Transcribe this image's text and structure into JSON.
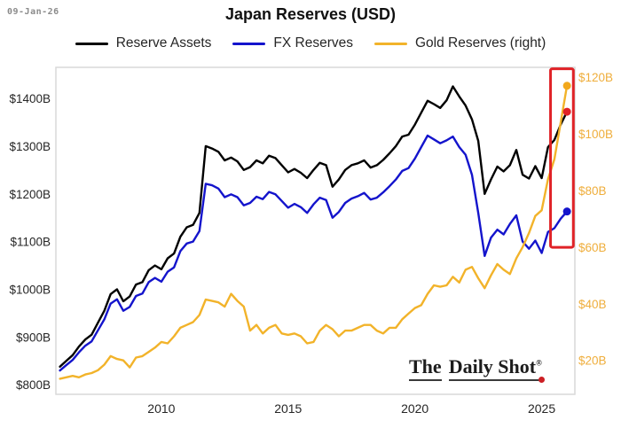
{
  "header": {
    "date": "09-Jan-26",
    "title": "Japan Reserves (USD)"
  },
  "legend": {
    "items": [
      {
        "label": "Reserve Assets",
        "color": "#000000"
      },
      {
        "label": "FX Reserves",
        "color": "#1414cc"
      },
      {
        "label": "Gold Reserves (right)",
        "color": "#f2b32a"
      }
    ]
  },
  "watermark": {
    "part1": "The",
    "part2": "Daily Shot",
    "reg": "®"
  },
  "colors": {
    "accent_red": "#e02227",
    "frame": "#d9d9d9",
    "text_dark": "#262626",
    "text_gray": "#8b8b8b",
    "right_axis_label": "#efae3c"
  },
  "chart_data": {
    "type": "line",
    "title": "Japan Reserves (USD)",
    "grid": false,
    "legend_position": "top",
    "x_range": [
      2005.84,
      2026.31
    ],
    "x_ticks": [
      2010,
      2015,
      2020,
      2025
    ],
    "x_tick_labels": [
      "2010",
      "2015",
      "2020",
      "2025"
    ],
    "left_axis": {
      "range": [
        780,
        1465
      ],
      "ticks": [
        1400,
        1300,
        1200,
        1100,
        1000,
        900,
        800
      ],
      "tick_labels": [
        "$1400B",
        "$1300B",
        "$1200B",
        "$1100B",
        "$1000B",
        "$900B",
        "$800B"
      ],
      "color": "#262626"
    },
    "right_axis": {
      "range": [
        8,
        123.5
      ],
      "ticks": [
        120,
        100,
        80,
        60,
        40,
        20
      ],
      "tick_labels": [
        "$120B",
        "$100B",
        "$80B",
        "$60B",
        "$40B",
        "$20B"
      ],
      "color": "#efae3c"
    },
    "highlight_box": {
      "x": [
        2025.35,
        2026.25
      ],
      "left_values": [
        1088,
        1462
      ],
      "color": "#e02227"
    },
    "x": [
      2006,
      2006.25,
      2006.5,
      2006.75,
      2007,
      2007.25,
      2007.5,
      2007.75,
      2008,
      2008.25,
      2008.5,
      2008.75,
      2009,
      2009.25,
      2009.5,
      2009.75,
      2010,
      2010.25,
      2010.5,
      2010.75,
      2011,
      2011.25,
      2011.5,
      2011.75,
      2012,
      2012.25,
      2012.5,
      2012.75,
      2013,
      2013.25,
      2013.5,
      2013.75,
      2014,
      2014.25,
      2014.5,
      2014.75,
      2015,
      2015.25,
      2015.5,
      2015.75,
      2016,
      2016.25,
      2016.5,
      2016.75,
      2017,
      2017.25,
      2017.5,
      2017.75,
      2018,
      2018.25,
      2018.5,
      2018.75,
      2019,
      2019.25,
      2019.5,
      2019.75,
      2020,
      2020.25,
      2020.5,
      2020.75,
      2021,
      2021.25,
      2021.5,
      2021.75,
      2022,
      2022.25,
      2022.5,
      2022.75,
      2023,
      2023.25,
      2023.5,
      2023.75,
      2024,
      2024.25,
      2024.5,
      2024.75,
      2025,
      2025.25,
      2025.5,
      2025.75,
      2026
    ],
    "series": [
      {
        "name": "Reserve Assets",
        "axis": "left",
        "color": "#000000",
        "marker_color": "#e02227",
        "values": [
          838,
          850,
          862,
          880,
          895,
          905,
          930,
          955,
          990,
          1000,
          975,
          985,
          1010,
          1015,
          1040,
          1050,
          1042,
          1065,
          1075,
          1110,
          1130,
          1135,
          1160,
          1300,
          1295,
          1288,
          1270,
          1276,
          1268,
          1250,
          1256,
          1270,
          1264,
          1280,
          1275,
          1260,
          1245,
          1252,
          1244,
          1233,
          1250,
          1265,
          1260,
          1215,
          1230,
          1250,
          1260,
          1264,
          1270,
          1255,
          1260,
          1271,
          1285,
          1300,
          1320,
          1324,
          1345,
          1370,
          1395,
          1388,
          1380,
          1396,
          1425,
          1404,
          1385,
          1356,
          1311,
          1200,
          1230,
          1257,
          1247,
          1260,
          1292,
          1240,
          1232,
          1258,
          1233,
          1298,
          1313,
          1345,
          1372
        ]
      },
      {
        "name": "FX Reserves",
        "axis": "left",
        "color": "#1414cc",
        "marker_color": "#1414cc",
        "values": [
          830,
          841,
          852,
          868,
          882,
          891,
          914,
          937,
          970,
          979,
          955,
          963,
          986,
          991,
          1015,
          1024,
          1016,
          1037,
          1046,
          1080,
          1096,
          1100,
          1122,
          1221,
          1218,
          1211,
          1193,
          1199,
          1193,
          1176,
          1181,
          1194,
          1189,
          1204,
          1199,
          1185,
          1171,
          1179,
          1172,
          1160,
          1178,
          1192,
          1187,
          1150,
          1162,
          1181,
          1190,
          1195,
          1202,
          1188,
          1192,
          1203,
          1216,
          1230,
          1248,
          1254,
          1274,
          1298,
          1322,
          1314,
          1306,
          1312,
          1320,
          1298,
          1282,
          1240,
          1160,
          1070,
          1108,
          1125,
          1115,
          1137,
          1155,
          1100,
          1085,
          1102,
          1076,
          1120,
          1128,
          1148,
          1163
        ]
      },
      {
        "name": "Gold Reserves (right)",
        "axis": "right",
        "color": "#f2b32a",
        "marker_color": "#f2a81c",
        "values": [
          13.5,
          14,
          14.5,
          14,
          15,
          15.5,
          16.5,
          18.5,
          21.5,
          20.5,
          20,
          17.5,
          21,
          21.5,
          23,
          24.5,
          26.5,
          26,
          28.5,
          31.5,
          32.5,
          33.5,
          36,
          41.5,
          41,
          40.5,
          39,
          43.5,
          41,
          39,
          30.5,
          32.5,
          29.5,
          31.5,
          32.5,
          29.5,
          29,
          29.5,
          28.5,
          26,
          26.5,
          30.5,
          32.5,
          31,
          28.5,
          30.5,
          30.5,
          31.5,
          32.5,
          32.5,
          30.5,
          29.5,
          31.5,
          31.5,
          34.5,
          36.5,
          38.5,
          39.5,
          43.5,
          46.5,
          46,
          46.5,
          49.5,
          47.5,
          52,
          53,
          49,
          45.5,
          50,
          54,
          52,
          50.5,
          56,
          60,
          65,
          71,
          73,
          84,
          91,
          104,
          117
        ]
      }
    ]
  }
}
